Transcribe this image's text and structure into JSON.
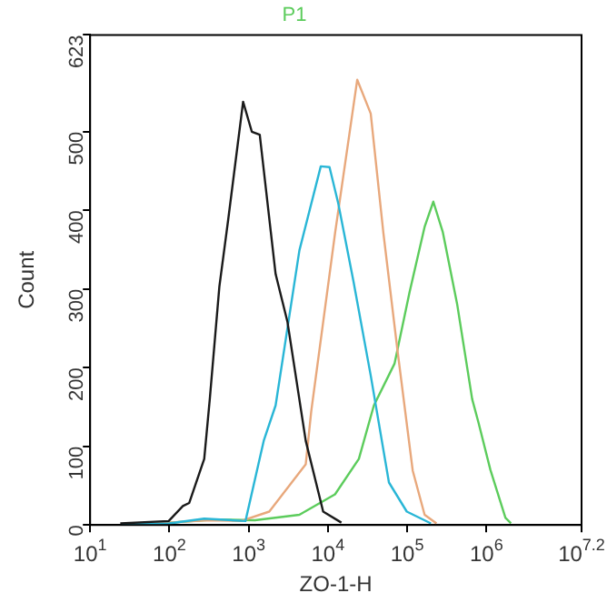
{
  "chart_data": {
    "type": "line",
    "title": "P1",
    "xlabel": "ZO-1-H",
    "ylabel": "Count",
    "log": "x",
    "grid": false,
    "legend": false,
    "marker": "none",
    "line_style": "solid",
    "xlim": [
      10,
      15848932
    ],
    "ylim": [
      0,
      623
    ],
    "xticks": [
      {
        "value": 10,
        "label": "10$^{1}$"
      },
      {
        "value": 100,
        "label": "10$^{2}$"
      },
      {
        "value": 1000,
        "label": "10$^{3}$"
      },
      {
        "value": 10000,
        "label": "10$^{4}$"
      },
      {
        "value": 100000,
        "label": "10$^{5}$"
      },
      {
        "value": 1000000,
        "label": "10$^{6}$"
      },
      {
        "value": 15848932,
        "label": "10$^{7.2}$"
      }
    ],
    "yticks": [
      0,
      100,
      200,
      300,
      400,
      500,
      623
    ],
    "series": [
      {
        "color": "#1a1a1a",
        "x": [
          24,
          98,
          148,
          178,
          275,
          324,
          427,
          550,
          851,
          1096,
          1380,
          2188,
          3090,
          5248,
          8710,
          14791
        ],
        "values": [
          2,
          5,
          24,
          28,
          84,
          161,
          303,
          387,
          538,
          500,
          496,
          319,
          258,
          107,
          17,
          3
        ]
      },
      {
        "color": "#29b6d6",
        "x": [
          25,
          100,
          275,
          912,
          1549,
          2188,
          4365,
          8128,
          10471,
          13490,
          20893,
          34674,
          58884,
          98855,
          199526
        ],
        "values": [
          1,
          2,
          8,
          5,
          107,
          152,
          349,
          456,
          455,
          409,
          311,
          190,
          54,
          17,
          2
        ]
      },
      {
        "color": "#e8a87c",
        "x": [
          25,
          100,
          300,
          800,
          1820,
          5248,
          6166,
          12303,
          23442,
          34674,
          50119,
          75858,
          117490,
          165959,
          234423
        ],
        "values": [
          1,
          3,
          6,
          5,
          17,
          77,
          145,
          371,
          566,
          523,
          371,
          220,
          69,
          13,
          2
        ]
      },
      {
        "color": "#5ccc5c",
        "x": [
          25,
          100,
          400,
          1200,
          4365,
          12303,
          24547,
          38019,
          69183,
          107152,
          165959,
          213796,
          281838,
          426580,
          660693,
          794328,
          1122018,
          1737801,
          2041738
        ],
        "values": [
          1,
          3,
          7,
          6,
          13,
          39,
          84,
          152,
          205,
          296,
          379,
          411,
          372,
          281,
          160,
          130,
          70,
          9,
          2
        ]
      }
    ]
  }
}
